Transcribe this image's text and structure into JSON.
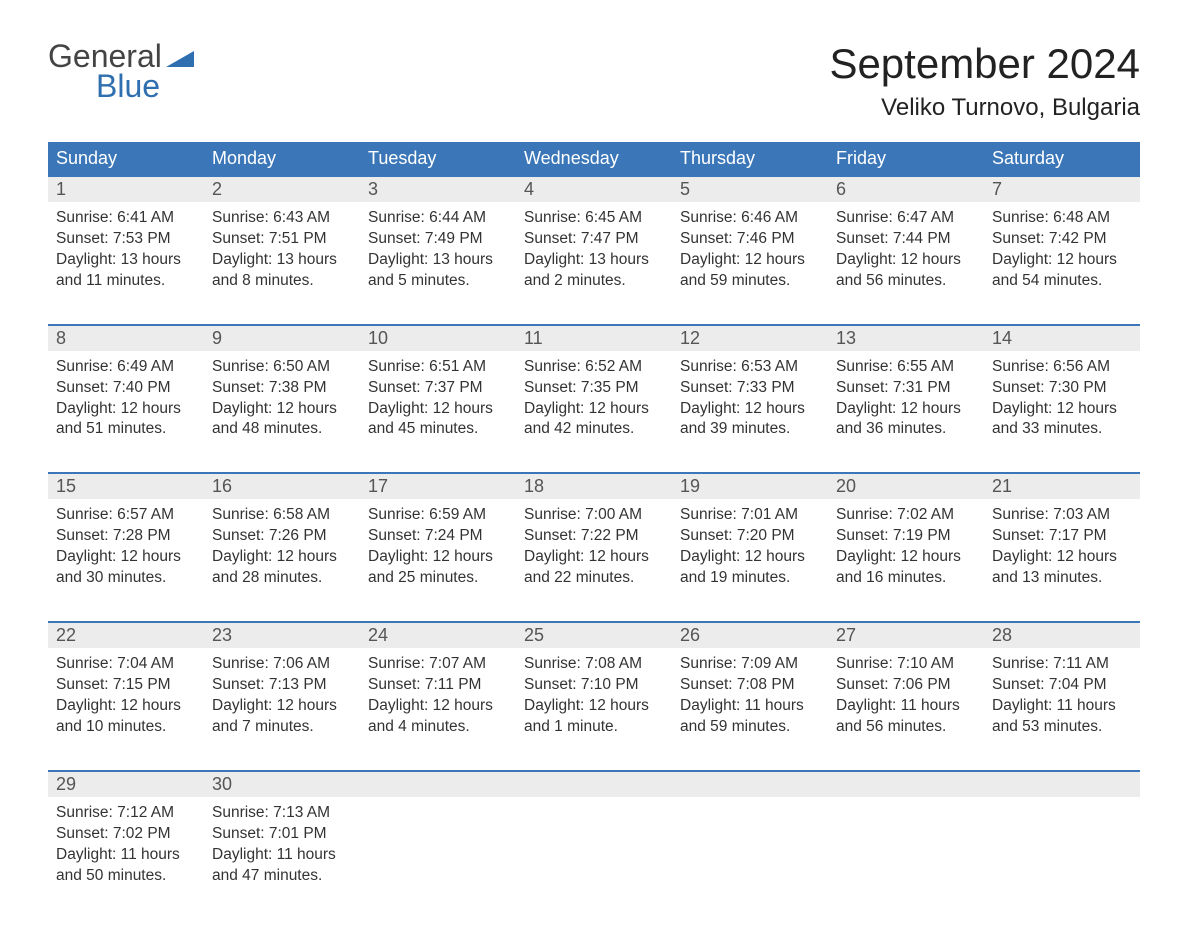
{
  "logo": {
    "word1": "General",
    "word2": "Blue",
    "word1_color": "#444444",
    "word2_color": "#2f6fb0",
    "triangle_color": "#2f6fb0"
  },
  "title": "September 2024",
  "location": "Veliko Turnovo, Bulgaria",
  "colors": {
    "header_bg": "#3b77b8",
    "header_text": "#ffffff",
    "daynum_bg": "#ececec",
    "daynum_text": "#555555",
    "body_text": "#333333",
    "week_border": "#3b77b8",
    "page_bg": "#ffffff"
  },
  "weekdays": [
    "Sunday",
    "Monday",
    "Tuesday",
    "Wednesday",
    "Thursday",
    "Friday",
    "Saturday"
  ],
  "weeks": [
    [
      {
        "day": 1,
        "sunrise": "6:41 AM",
        "sunset": "7:53 PM",
        "daylight": "13 hours and 11 minutes."
      },
      {
        "day": 2,
        "sunrise": "6:43 AM",
        "sunset": "7:51 PM",
        "daylight": "13 hours and 8 minutes."
      },
      {
        "day": 3,
        "sunrise": "6:44 AM",
        "sunset": "7:49 PM",
        "daylight": "13 hours and 5 minutes."
      },
      {
        "day": 4,
        "sunrise": "6:45 AM",
        "sunset": "7:47 PM",
        "daylight": "13 hours and 2 minutes."
      },
      {
        "day": 5,
        "sunrise": "6:46 AM",
        "sunset": "7:46 PM",
        "daylight": "12 hours and 59 minutes."
      },
      {
        "day": 6,
        "sunrise": "6:47 AM",
        "sunset": "7:44 PM",
        "daylight": "12 hours and 56 minutes."
      },
      {
        "day": 7,
        "sunrise": "6:48 AM",
        "sunset": "7:42 PM",
        "daylight": "12 hours and 54 minutes."
      }
    ],
    [
      {
        "day": 8,
        "sunrise": "6:49 AM",
        "sunset": "7:40 PM",
        "daylight": "12 hours and 51 minutes."
      },
      {
        "day": 9,
        "sunrise": "6:50 AM",
        "sunset": "7:38 PM",
        "daylight": "12 hours and 48 minutes."
      },
      {
        "day": 10,
        "sunrise": "6:51 AM",
        "sunset": "7:37 PM",
        "daylight": "12 hours and 45 minutes."
      },
      {
        "day": 11,
        "sunrise": "6:52 AM",
        "sunset": "7:35 PM",
        "daylight": "12 hours and 42 minutes."
      },
      {
        "day": 12,
        "sunrise": "6:53 AM",
        "sunset": "7:33 PM",
        "daylight": "12 hours and 39 minutes."
      },
      {
        "day": 13,
        "sunrise": "6:55 AM",
        "sunset": "7:31 PM",
        "daylight": "12 hours and 36 minutes."
      },
      {
        "day": 14,
        "sunrise": "6:56 AM",
        "sunset": "7:30 PM",
        "daylight": "12 hours and 33 minutes."
      }
    ],
    [
      {
        "day": 15,
        "sunrise": "6:57 AM",
        "sunset": "7:28 PM",
        "daylight": "12 hours and 30 minutes."
      },
      {
        "day": 16,
        "sunrise": "6:58 AM",
        "sunset": "7:26 PM",
        "daylight": "12 hours and 28 minutes."
      },
      {
        "day": 17,
        "sunrise": "6:59 AM",
        "sunset": "7:24 PM",
        "daylight": "12 hours and 25 minutes."
      },
      {
        "day": 18,
        "sunrise": "7:00 AM",
        "sunset": "7:22 PM",
        "daylight": "12 hours and 22 minutes."
      },
      {
        "day": 19,
        "sunrise": "7:01 AM",
        "sunset": "7:20 PM",
        "daylight": "12 hours and 19 minutes."
      },
      {
        "day": 20,
        "sunrise": "7:02 AM",
        "sunset": "7:19 PM",
        "daylight": "12 hours and 16 minutes."
      },
      {
        "day": 21,
        "sunrise": "7:03 AM",
        "sunset": "7:17 PM",
        "daylight": "12 hours and 13 minutes."
      }
    ],
    [
      {
        "day": 22,
        "sunrise": "7:04 AM",
        "sunset": "7:15 PM",
        "daylight": "12 hours and 10 minutes."
      },
      {
        "day": 23,
        "sunrise": "7:06 AM",
        "sunset": "7:13 PM",
        "daylight": "12 hours and 7 minutes."
      },
      {
        "day": 24,
        "sunrise": "7:07 AM",
        "sunset": "7:11 PM",
        "daylight": "12 hours and 4 minutes."
      },
      {
        "day": 25,
        "sunrise": "7:08 AM",
        "sunset": "7:10 PM",
        "daylight": "12 hours and 1 minute."
      },
      {
        "day": 26,
        "sunrise": "7:09 AM",
        "sunset": "7:08 PM",
        "daylight": "11 hours and 59 minutes."
      },
      {
        "day": 27,
        "sunrise": "7:10 AM",
        "sunset": "7:06 PM",
        "daylight": "11 hours and 56 minutes."
      },
      {
        "day": 28,
        "sunrise": "7:11 AM",
        "sunset": "7:04 PM",
        "daylight": "11 hours and 53 minutes."
      }
    ],
    [
      {
        "day": 29,
        "sunrise": "7:12 AM",
        "sunset": "7:02 PM",
        "daylight": "11 hours and 50 minutes."
      },
      {
        "day": 30,
        "sunrise": "7:13 AM",
        "sunset": "7:01 PM",
        "daylight": "11 hours and 47 minutes."
      },
      null,
      null,
      null,
      null,
      null
    ]
  ],
  "labels": {
    "sunrise_prefix": "Sunrise: ",
    "sunset_prefix": "Sunset: ",
    "daylight_prefix": "Daylight: "
  }
}
